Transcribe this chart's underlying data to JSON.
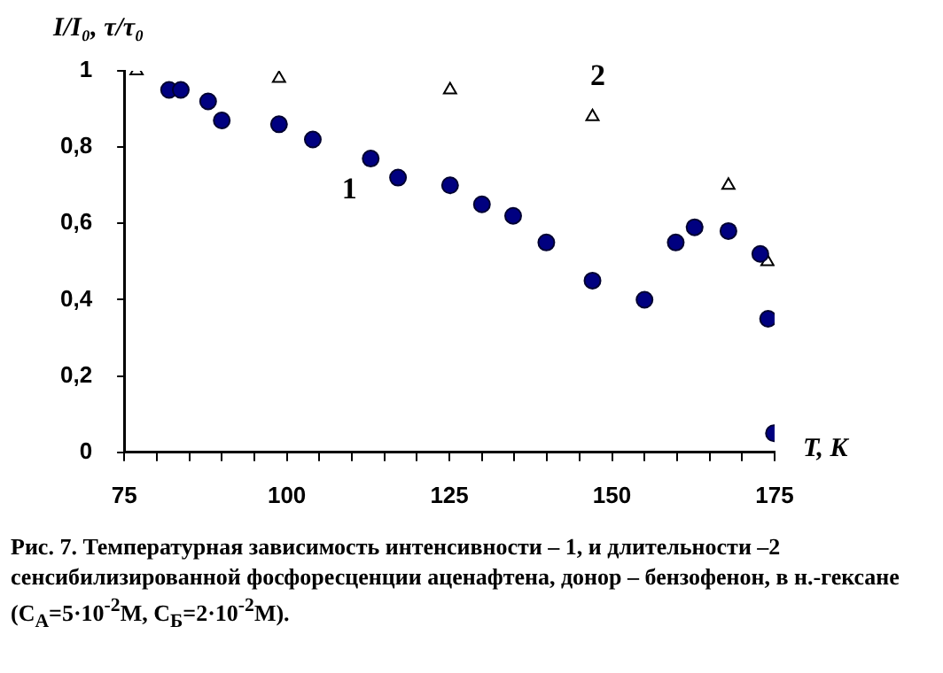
{
  "chart_data": {
    "type": "scatter",
    "xlabel": "T, K",
    "ylabel": "I/I₀, τ/τ₀",
    "xlim": [
      75,
      175
    ],
    "ylim": [
      0,
      1
    ],
    "xticks": [
      75,
      {
        "value": 80,
        "label": null
      },
      {
        "value": 85,
        "label": null
      },
      {
        "value": 90,
        "label": null
      },
      {
        "value": 95,
        "label": null
      },
      100,
      {
        "value": 105,
        "label": null
      },
      {
        "value": 110,
        "label": null
      },
      {
        "value": 115,
        "label": null
      },
      {
        "value": 120,
        "label": null
      },
      125,
      {
        "value": 130,
        "label": null
      },
      {
        "value": 135,
        "label": null
      },
      {
        "value": 140,
        "label": null
      },
      {
        "value": 145,
        "label": null
      },
      150,
      {
        "value": 155,
        "label": null
      },
      {
        "value": 160,
        "label": null
      },
      {
        "value": 165,
        "label": null
      },
      {
        "value": 170,
        "label": null
      },
      175
    ],
    "yticks": [
      0,
      {
        "value": 0.2,
        "label": "0,2"
      },
      {
        "value": 0.4,
        "label": "0,4"
      },
      {
        "value": 0.6,
        "label": "0,6"
      },
      {
        "value": 0.8,
        "label": "0,8"
      },
      1
    ],
    "grid": false,
    "legend": false,
    "series": [
      {
        "name": "1",
        "color": "#000080",
        "marker": "circle",
        "x": [
          81.9,
          83.7,
          87.9,
          90.0,
          98.8,
          104.0,
          112.9,
          117.1,
          125.1,
          130.0,
          134.8,
          139.9,
          147.0,
          155.0,
          159.8,
          162.7,
          167.9,
          172.8,
          174.0,
          174.9
        ],
        "values": [
          0.95,
          0.95,
          0.92,
          0.87,
          0.86,
          0.82,
          0.77,
          0.72,
          0.7,
          0.65,
          0.62,
          0.55,
          0.45,
          0.4,
          0.55,
          0.59,
          0.58,
          0.52,
          0.35,
          0.05
        ]
      },
      {
        "name": "2",
        "color": "#ffffff",
        "marker": "triangle",
        "x": [
          76.9,
          98.8,
          125.1,
          147.0,
          167.9,
          173.9
        ],
        "values": [
          1.0,
          0.98,
          0.95,
          0.88,
          0.7,
          0.5
        ]
      }
    ],
    "annotations": [
      "Рис. 7. Температурная зависимость интенсивности – 1, и длительности –2 сенсибилизированной фосфоресценции аценафтена, донор – бензофенон, в н.-гексане (С$_{А}$=5·10$^{-2}$М, С$_{Б}$=2·10$^{-2}$М)."
    ]
  }
}
